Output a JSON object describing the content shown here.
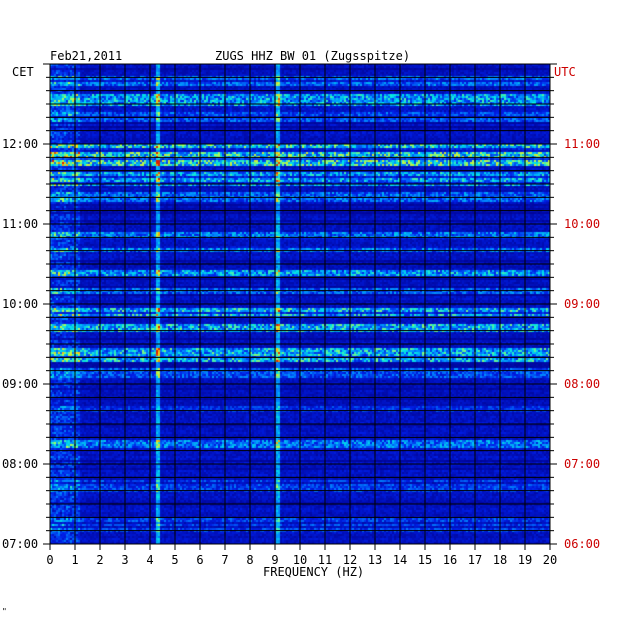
{
  "header": {
    "date": "Feb21,2011",
    "title": "ZUGS HHZ BW 01 (Zugsspitze)",
    "left_zone": "CET",
    "right_zone": "UTC"
  },
  "footer": {
    "mark": "\""
  },
  "colors": {
    "background": "#000088",
    "utc_text": "#cc0000",
    "grid": "#000000"
  },
  "chart_data": {
    "type": "heatmap",
    "title": "ZUGS HHZ BW 01 (Zugsspitze)",
    "xlabel": "FREQUENCY (HZ)",
    "xlim": [
      0,
      20
    ],
    "x_ticks": [
      "0",
      "1",
      "2",
      "3",
      "4",
      "5",
      "6",
      "7",
      "8",
      "9",
      "10",
      "11",
      "12",
      "13",
      "14",
      "15",
      "16",
      "17",
      "18",
      "19",
      "20"
    ],
    "y_ticks_cet": [
      "12:00",
      "11:00",
      "10:00",
      "09:00",
      "08:00",
      "07:00"
    ],
    "y_ticks_utc": [
      "11:00",
      "10:00",
      "09:00",
      "08:00",
      "07:00",
      "06:00"
    ],
    "time_range_cet": [
      "07:00",
      "13:00"
    ],
    "intensity_bands_cet": [
      {
        "start": "12:44",
        "end": "12:52",
        "level": 0.55
      },
      {
        "start": "12:30",
        "end": "12:38",
        "level": 0.7
      },
      {
        "start": "12:18",
        "end": "12:24",
        "level": 0.5
      },
      {
        "start": "11:56",
        "end": "12:00",
        "level": 0.8
      },
      {
        "start": "11:45",
        "end": "11:55",
        "level": 0.85
      },
      {
        "start": "11:30",
        "end": "11:40",
        "level": 0.7
      },
      {
        "start": "11:18",
        "end": "11:24",
        "level": 0.55
      },
      {
        "start": "10:50",
        "end": "10:54",
        "level": 0.6
      },
      {
        "start": "10:40",
        "end": "10:42",
        "level": 0.6
      },
      {
        "start": "10:22",
        "end": "10:26",
        "level": 0.7
      },
      {
        "start": "10:08",
        "end": "10:12",
        "level": 0.55
      },
      {
        "start": "09:52",
        "end": "09:58",
        "level": 0.75
      },
      {
        "start": "09:40",
        "end": "09:46",
        "level": 0.75
      },
      {
        "start": "09:18",
        "end": "09:28",
        "level": 0.75
      },
      {
        "start": "09:06",
        "end": "09:12",
        "level": 0.5
      },
      {
        "start": "08:40",
        "end": "08:46",
        "level": 0.4
      },
      {
        "start": "08:12",
        "end": "08:18",
        "level": 0.6
      },
      {
        "start": "07:40",
        "end": "07:48",
        "level": 0.45
      },
      {
        "start": "07:10",
        "end": "07:20",
        "level": 0.45
      }
    ],
    "persistent_lines_hz": [
      4.3,
      9.1
    ],
    "grid": true
  }
}
